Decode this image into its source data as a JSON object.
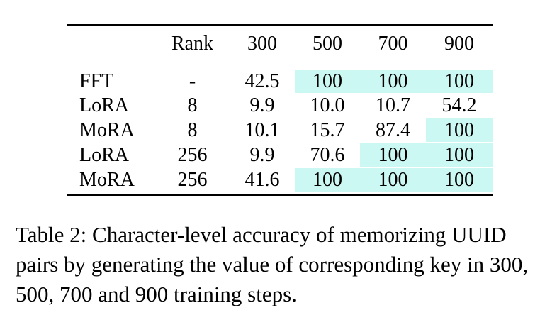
{
  "table": {
    "header": [
      "",
      "Rank",
      "300",
      "500",
      "700",
      "900"
    ],
    "rows": [
      {
        "method": "FFT",
        "rank": "-",
        "values": [
          "42.5",
          "100",
          "100",
          "100"
        ]
      },
      {
        "method": "LoRA",
        "rank": "8",
        "values": [
          "9.9",
          "10.0",
          "10.7",
          "54.2"
        ]
      },
      {
        "method": "MoRA",
        "rank": "8",
        "values": [
          "10.1",
          "15.7",
          "87.4",
          "100"
        ]
      },
      {
        "method": "LoRA",
        "rank": "256",
        "values": [
          "9.9",
          "70.6",
          "100",
          "100"
        ]
      },
      {
        "method": "MoRA",
        "rank": "256",
        "values": [
          "41.6",
          "100",
          "100",
          "100"
        ]
      }
    ],
    "highlight_color": "#ccf8f4",
    "highlighted_cells": [
      [
        0,
        1
      ],
      [
        0,
        2
      ],
      [
        0,
        3
      ],
      [
        2,
        3
      ],
      [
        3,
        2
      ],
      [
        3,
        3
      ],
      [
        4,
        1
      ],
      [
        4,
        2
      ],
      [
        4,
        3
      ]
    ]
  },
  "caption": "Table 2: Character-level accuracy of memorizing UUID pairs by generating the value of corresponding key in 300, 500, 700 and 900 training steps."
}
